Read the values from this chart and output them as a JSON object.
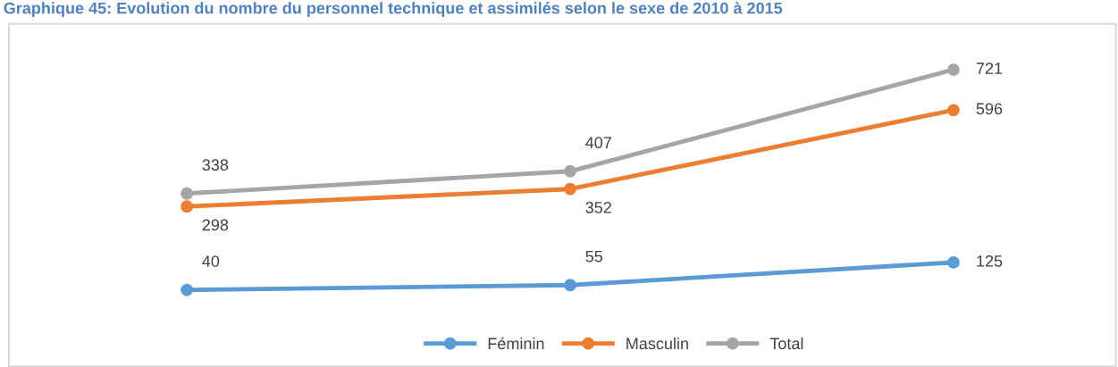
{
  "chart_data": {
    "type": "line",
    "title": "Graphique 45: Evolution du nombre du personnel technique et assimilés selon le sexe de 2010 à 2015",
    "categories": [
      null,
      null,
      null
    ],
    "series": [
      {
        "name": "Féminin",
        "color": "#5b9bd5",
        "values": [
          40,
          55,
          125
        ]
      },
      {
        "name": "Masculin",
        "color": "#ed7d31",
        "values": [
          298,
          352,
          596
        ]
      },
      {
        "name": "Total",
        "color": "#a5a5a5",
        "values": [
          338,
          407,
          721
        ]
      }
    ],
    "data_labels": true,
    "marker": "circle",
    "line_style": "solid",
    "legend": "bottom",
    "grid": false,
    "tick_labels": false
  }
}
